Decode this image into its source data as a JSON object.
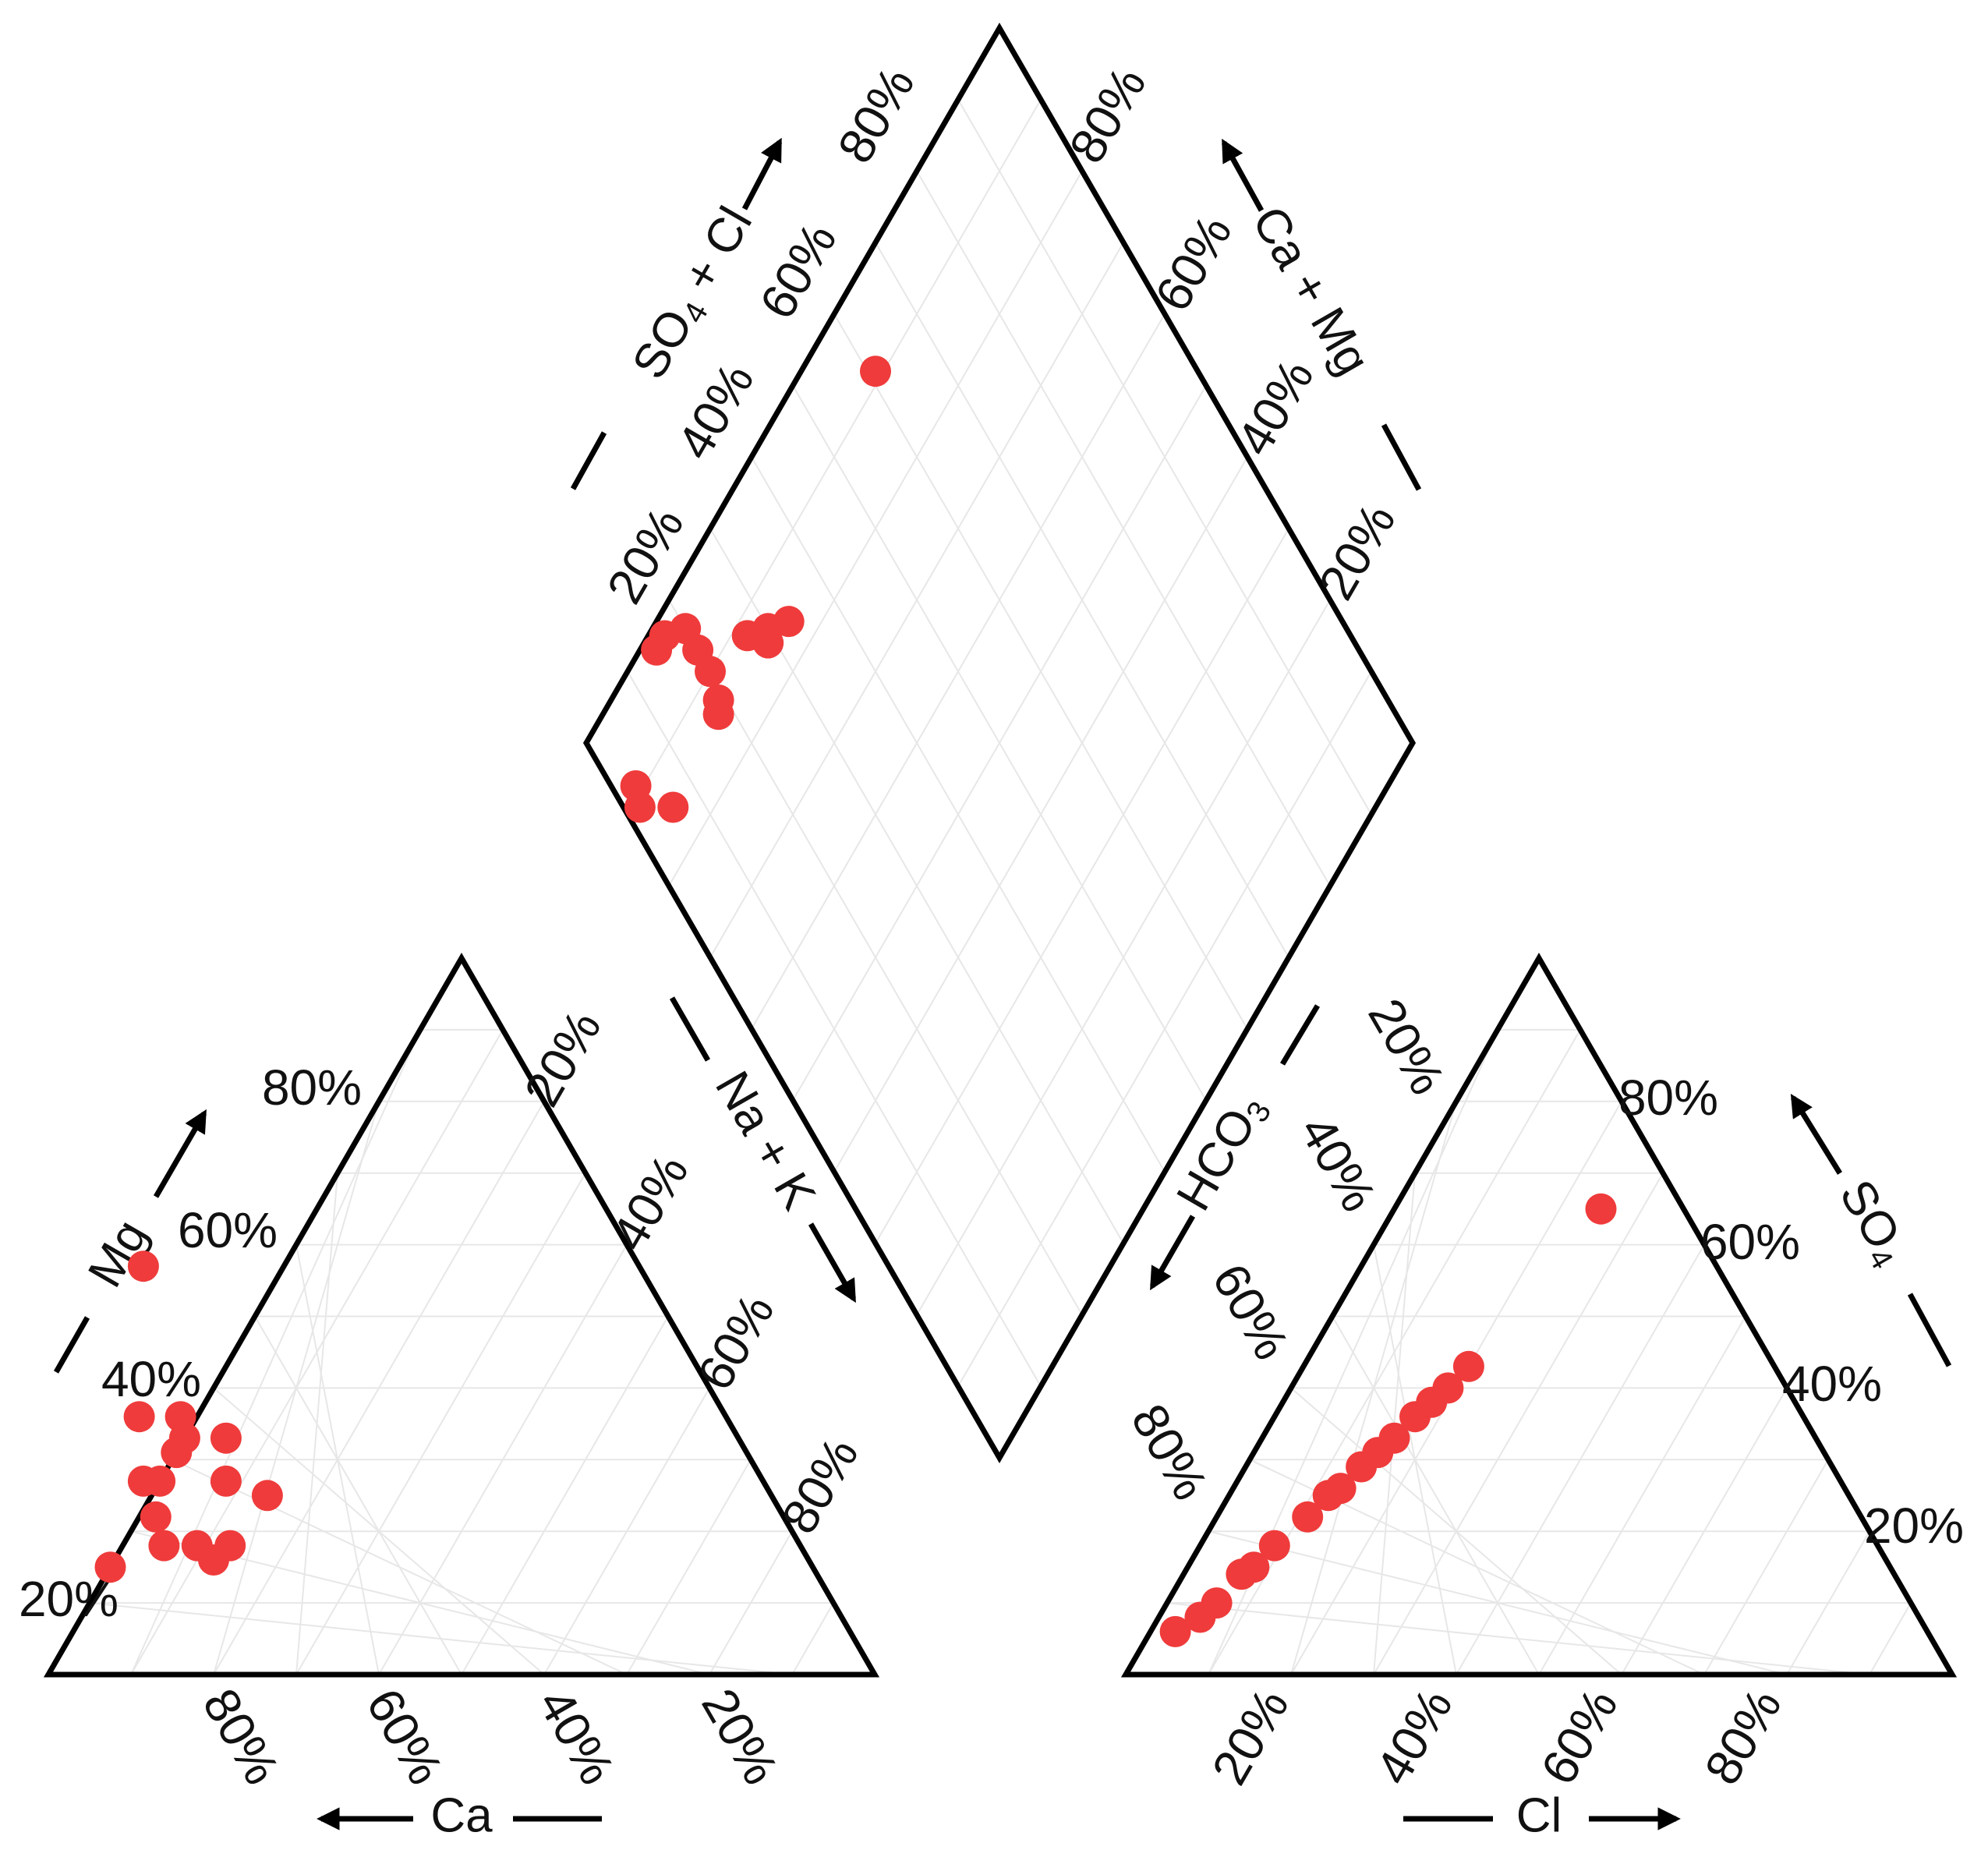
{
  "chart_data": [
    {
      "type": "scatter",
      "panel": "cation-triangle",
      "axes": {
        "left": {
          "label": "Mg",
          "ticks": [
            "20%",
            "40%",
            "60%",
            "80%"
          ]
        },
        "right": {
          "label": "Na + K",
          "ticks": [
            "20%",
            "40%",
            "60%",
            "80%"
          ]
        },
        "bottom": {
          "label": "Ca",
          "ticks": [
            "80%",
            "60%",
            "40%",
            "20%"
          ]
        }
      },
      "points": [
        {
          "Ca": 85,
          "Mg": 15
        },
        {
          "Ca": 77,
          "Mg": 18
        },
        {
          "Ca": 73,
          "Mg": 18
        },
        {
          "Ca": 72,
          "Mg": 16
        },
        {
          "Ca": 69,
          "Mg": 18
        },
        {
          "Ca": 76,
          "Mg": 22
        },
        {
          "Ca": 75,
          "Mg": 27
        },
        {
          "Ca": 73,
          "Mg": 27
        },
        {
          "Ca": 65,
          "Mg": 27
        },
        {
          "Ca": 69,
          "Mg": 31
        },
        {
          "Ca": 66,
          "Mg": 36
        },
        {
          "Ca": 67,
          "Mg": 33
        },
        {
          "Ca": 71,
          "Mg": 36
        },
        {
          "Ca": 62,
          "Mg": 33
        },
        {
          "Ca": 61,
          "Mg": 25
        },
        {
          "Ca": 60,
          "Mg": 57
        }
      ],
      "grid": true
    },
    {
      "type": "scatter",
      "panel": "diamond",
      "axes": {
        "upper_left": {
          "label": "SO4 + Cl",
          "ticks": [
            "20%",
            "40%",
            "60%",
            "80%"
          ]
        },
        "upper_right": {
          "label": "Ca + Mg",
          "ticks": [
            "20%",
            "40%",
            "60%",
            "80%"
          ]
        }
      },
      "points": [
        {
          "SO4_Cl": 61,
          "Ca_Mg": 91
        },
        {
          "SO4_Cl": 33,
          "Ca_Mg": 84
        },
        {
          "SO4_Cl": 30,
          "Ca_Mg": 86
        },
        {
          "SO4_Cl": 29,
          "Ca_Mg": 85
        },
        {
          "SO4_Cl": 27,
          "Ca_Mg": 88
        },
        {
          "SO4_Cl": 20,
          "Ca_Mg": 96
        },
        {
          "SO4_Cl": 20,
          "Ca_Mg": 93
        },
        {
          "SO4_Cl": 20,
          "Ca_Mg": 90
        },
        {
          "SO4_Cl": 19,
          "Ca_Mg": 87
        },
        {
          "SO4_Cl": 18,
          "Ca_Mg": 86
        },
        {
          "SO4_Cl": 17,
          "Ca_Mg": 98
        },
        {
          "SO4_Cl": 15,
          "Ca_Mg": 98
        },
        {
          "SO4_Cl": 6,
          "Ca_Mg": 85
        },
        {
          "SO4_Cl": 3,
          "Ca_Mg": 91
        },
        {
          "SO4_Cl": 2,
          "Ca_Mg": 89
        }
      ],
      "grid": true
    },
    {
      "type": "scatter",
      "panel": "anion-triangle",
      "axes": {
        "left": {
          "label": "HCO3",
          "ticks": [
            "20%",
            "40%",
            "60%",
            "80%"
          ]
        },
        "right": {
          "label": "SO4",
          "ticks": [
            "20%",
            "40%",
            "60%",
            "80%"
          ]
        },
        "bottom": {
          "label": "Cl",
          "ticks": [
            "20%",
            "40%",
            "60%",
            "80%"
          ]
        }
      },
      "points": [
        {
          "Cl": 3,
          "SO4": 6
        },
        {
          "Cl": 5,
          "SO4": 8
        },
        {
          "Cl": 6,
          "SO4": 10
        },
        {
          "Cl": 7,
          "SO4": 14
        },
        {
          "Cl": 8,
          "SO4": 15
        },
        {
          "Cl": 9,
          "SO4": 18
        },
        {
          "Cl": 11,
          "SO4": 22
        },
        {
          "Cl": 12,
          "SO4": 25
        },
        {
          "Cl": 13,
          "SO4": 26
        },
        {
          "Cl": 14,
          "SO4": 29
        },
        {
          "Cl": 15,
          "SO4": 31
        },
        {
          "Cl": 16,
          "SO4": 33
        },
        {
          "Cl": 17,
          "SO4": 36
        },
        {
          "Cl": 18,
          "SO4": 38
        },
        {
          "Cl": 19,
          "SO4": 40
        },
        {
          "Cl": 20,
          "SO4": 43
        },
        {
          "Cl": 25,
          "SO4": 65
        }
      ],
      "grid": true
    }
  ],
  "colors": {
    "points": "#ef3b3b",
    "frame": "#000000",
    "grid": "#e7e7e7"
  }
}
